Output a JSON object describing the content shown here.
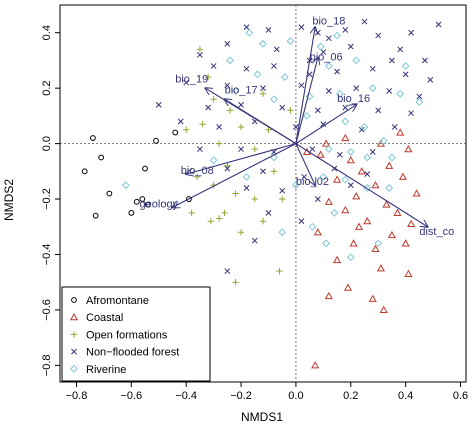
{
  "chart_data": {
    "type": "scatter",
    "title": "",
    "xlabel": "NMDS1",
    "ylabel": "NMDS2",
    "xlim": [
      -0.86,
      0.62
    ],
    "ylim": [
      -0.86,
      0.5
    ],
    "x_ticks": [
      -0.8,
      -0.6,
      -0.4,
      -0.2,
      0.0,
      0.2,
      0.4,
      0.6
    ],
    "y_ticks": [
      -0.8,
      -0.6,
      -0.4,
      -0.2,
      0.0,
      0.2,
      0.4
    ],
    "x_tick_labels": [
      "−0.8",
      "−0.6",
      "−0.4",
      "−0.2",
      "0.0",
      "0.2",
      "0.4",
      "0.6"
    ],
    "y_tick_labels": [
      "−0.8",
      "−0.6",
      "−0.4",
      "−0.2",
      "0.0",
      "0.2",
      "0.4"
    ],
    "grid": false,
    "legend_position": "bottom-left",
    "series": [
      {
        "name": "Afromontane",
        "marker": "circle",
        "color": "#000000",
        "points": [
          [
            -0.74,
            0.02
          ],
          [
            -0.71,
            -0.05
          ],
          [
            -0.77,
            -0.1
          ],
          [
            -0.68,
            -0.18
          ],
          [
            -0.73,
            -0.26
          ],
          [
            -0.58,
            -0.21
          ],
          [
            -0.6,
            -0.25
          ],
          [
            -0.55,
            -0.09
          ],
          [
            -0.51,
            0.01
          ],
          [
            -0.44,
            0.04
          ],
          [
            -0.54,
            -0.22
          ],
          [
            -0.39,
            -0.2
          ],
          [
            -0.56,
            -0.2
          ]
        ]
      },
      {
        "name": "Coastal",
        "marker": "triangle",
        "color": "#c0392b",
        "points": [
          [
            0.38,
            0.04
          ],
          [
            0.31,
            0.0
          ],
          [
            0.41,
            -0.02
          ],
          [
            0.18,
            0.02
          ],
          [
            0.11,
            0.0
          ],
          [
            0.04,
            -0.03
          ],
          [
            0.09,
            -0.04
          ],
          [
            0.2,
            -0.06
          ],
          [
            0.34,
            -0.08
          ],
          [
            0.24,
            -0.1
          ],
          [
            0.39,
            -0.12
          ],
          [
            0.15,
            -0.13
          ],
          [
            0.29,
            -0.15
          ],
          [
            0.44,
            -0.18
          ],
          [
            0.22,
            -0.19
          ],
          [
            0.12,
            -0.21
          ],
          [
            0.33,
            -0.22
          ],
          [
            0.18,
            -0.24
          ],
          [
            0.26,
            -0.28
          ],
          [
            0.42,
            -0.29
          ],
          [
            0.35,
            -0.33
          ],
          [
            0.08,
            -0.32
          ],
          [
            0.21,
            -0.36
          ],
          [
            0.29,
            -0.38
          ],
          [
            0.4,
            -0.36
          ],
          [
            0.15,
            -0.42
          ],
          [
            0.31,
            -0.45
          ],
          [
            0.41,
            -0.47
          ],
          [
            0.19,
            -0.52
          ],
          [
            0.28,
            -0.56
          ],
          [
            0.32,
            -0.6
          ],
          [
            0.12,
            -0.55
          ],
          [
            0.07,
            -0.8
          ],
          [
            0.23,
            -0.3
          ],
          [
            0.37,
            -0.25
          ]
        ]
      },
      {
        "name": "Open formations",
        "marker": "plus",
        "color": "#8aaa30",
        "points": [
          [
            -0.35,
            0.34
          ],
          [
            -0.32,
            0.24
          ],
          [
            -0.3,
            0.16
          ],
          [
            -0.24,
            0.12
          ],
          [
            -0.4,
            0.05
          ],
          [
            -0.34,
            0.07
          ],
          [
            -0.28,
            0.0
          ],
          [
            -0.2,
            0.06
          ],
          [
            -0.15,
            -0.02
          ],
          [
            -0.25,
            -0.08
          ],
          [
            -0.36,
            -0.12
          ],
          [
            -0.3,
            -0.15
          ],
          [
            -0.22,
            -0.18
          ],
          [
            -0.15,
            -0.2
          ],
          [
            -0.26,
            -0.25
          ],
          [
            -0.31,
            -0.28
          ],
          [
            -0.38,
            -0.25
          ],
          [
            -0.2,
            -0.32
          ],
          [
            -0.12,
            -0.28
          ],
          [
            -0.05,
            -0.2
          ],
          [
            -0.08,
            -0.1
          ],
          [
            -0.02,
            0.12
          ],
          [
            -0.12,
            0.18
          ],
          [
            -0.06,
            -0.46
          ],
          [
            -0.22,
            -0.5
          ],
          [
            -0.28,
            -0.27
          ],
          [
            -0.1,
            0.05
          ]
        ]
      },
      {
        "name": "Non−flooded forest",
        "marker": "x",
        "color": "#35357a",
        "points": [
          [
            -0.18,
            0.42
          ],
          [
            -0.1,
            0.41
          ],
          [
            0.02,
            0.42
          ],
          [
            0.08,
            0.4
          ],
          [
            0.18,
            0.41
          ],
          [
            0.25,
            0.44
          ],
          [
            0.3,
            0.39
          ],
          [
            0.42,
            0.4
          ],
          [
            0.52,
            0.43
          ],
          [
            -0.25,
            0.36
          ],
          [
            -0.07,
            0.34
          ],
          [
            0.1,
            0.33
          ],
          [
            0.2,
            0.35
          ],
          [
            0.38,
            0.34
          ],
          [
            0.47,
            0.3
          ],
          [
            -0.3,
            0.28
          ],
          [
            -0.18,
            0.27
          ],
          [
            -0.08,
            0.28
          ],
          [
            0.05,
            0.3
          ],
          [
            0.15,
            0.26
          ],
          [
            0.28,
            0.27
          ],
          [
            0.4,
            0.25
          ],
          [
            0.49,
            0.23
          ],
          [
            -0.4,
            0.22
          ],
          [
            -0.25,
            0.21
          ],
          [
            -0.12,
            0.2
          ],
          [
            0.02,
            0.21
          ],
          [
            0.12,
            0.19
          ],
          [
            0.22,
            0.2
          ],
          [
            0.34,
            0.19
          ],
          [
            0.45,
            0.17
          ],
          [
            -0.5,
            0.14
          ],
          [
            -0.32,
            0.13
          ],
          [
            -0.2,
            0.14
          ],
          [
            -0.05,
            0.13
          ],
          [
            0.08,
            0.12
          ],
          [
            0.18,
            0.13
          ],
          [
            0.3,
            0.12
          ],
          [
            0.42,
            0.11
          ],
          [
            -0.42,
            0.08
          ],
          [
            -0.28,
            0.06
          ],
          [
            -0.15,
            0.08
          ],
          [
            0.0,
            0.06
          ],
          [
            0.1,
            0.07
          ],
          [
            0.24,
            0.05
          ],
          [
            0.36,
            0.06
          ],
          [
            -0.35,
            -0.02
          ],
          [
            -0.2,
            -0.02
          ],
          [
            -0.08,
            -0.03
          ],
          [
            0.06,
            -0.02
          ],
          [
            0.16,
            -0.04
          ],
          [
            0.28,
            -0.03
          ],
          [
            -0.25,
            -0.09
          ],
          [
            -0.12,
            -0.1
          ],
          [
            0.03,
            -0.12
          ],
          [
            0.14,
            -0.09
          ],
          [
            0.26,
            -0.11
          ],
          [
            -0.18,
            -0.16
          ],
          [
            -0.05,
            -0.17
          ],
          [
            0.08,
            -0.2
          ],
          [
            0.2,
            -0.15
          ],
          [
            -0.1,
            -0.25
          ],
          [
            0.02,
            -0.28
          ],
          [
            -0.25,
            -0.46
          ],
          [
            -0.15,
            -0.35
          ],
          [
            0.05,
            0.25
          ],
          [
            -0.35,
            0.32
          ],
          [
            0.35,
            0.3
          ],
          [
            0.12,
            0.38
          ]
        ]
      },
      {
        "name": "Riverine",
        "marker": "diamond",
        "color": "#7ec8d8",
        "points": [
          [
            -0.17,
            0.4
          ],
          [
            -0.12,
            0.36
          ],
          [
            -0.02,
            0.37
          ],
          [
            0.09,
            0.35
          ],
          [
            0.15,
            0.39
          ],
          [
            -0.24,
            0.3
          ],
          [
            -0.14,
            0.25
          ],
          [
            -0.04,
            0.24
          ],
          [
            0.12,
            0.28
          ],
          [
            0.22,
            0.3
          ],
          [
            0.4,
            0.28
          ],
          [
            -0.22,
            0.19
          ],
          [
            -0.08,
            0.16
          ],
          [
            0.05,
            0.17
          ],
          [
            0.16,
            0.18
          ],
          [
            0.28,
            0.2
          ],
          [
            0.38,
            0.18
          ],
          [
            0.45,
            0.15
          ],
          [
            0.04,
            0.1
          ],
          [
            0.18,
            0.08
          ],
          [
            0.25,
            0.06
          ],
          [
            0.32,
            0.01
          ],
          [
            0.12,
            -0.02
          ],
          [
            0.2,
            -0.03
          ],
          [
            0.26,
            -0.05
          ],
          [
            0.35,
            -0.05
          ],
          [
            0.1,
            -0.12
          ],
          [
            0.18,
            -0.13
          ],
          [
            0.26,
            -0.16
          ],
          [
            0.34,
            -0.16
          ],
          [
            0.14,
            -0.25
          ],
          [
            0.06,
            -0.3
          ],
          [
            0.11,
            -0.36
          ],
          [
            0.2,
            -0.41
          ],
          [
            0.3,
            -0.36
          ],
          [
            -0.3,
            -0.06
          ],
          [
            -0.18,
            -0.12
          ],
          [
            -0.08,
            -0.05
          ],
          [
            -0.05,
            -0.32
          ],
          [
            -0.62,
            -0.15
          ],
          [
            0.0,
            -0.15
          ]
        ]
      }
    ],
    "arrows": [
      {
        "label": "bio_18",
        "x": 0.07,
        "y": 0.42,
        "lx": 0.06,
        "ly": 0.43
      },
      {
        "label": "bio_06",
        "x": 0.08,
        "y": 0.31,
        "lx": 0.05,
        "ly": 0.3
      },
      {
        "label": "bio_19",
        "x": -0.33,
        "y": 0.2,
        "lx": -0.44,
        "ly": 0.22
      },
      {
        "label": "bio_17",
        "x": -0.26,
        "y": 0.16,
        "lx": -0.26,
        "ly": 0.18
      },
      {
        "label": "bio_16",
        "x": 0.22,
        "y": 0.14,
        "lx": 0.15,
        "ly": 0.15
      },
      {
        "label": "bio_08",
        "x": -0.4,
        "y": -0.11,
        "lx": -0.42,
        "ly": -0.11
      },
      {
        "label": "geology",
        "x": -0.45,
        "y": -0.23,
        "lx": -0.57,
        "ly": -0.23
      },
      {
        "label": "bio_02",
        "x": 0.07,
        "y": -0.15,
        "lx": 0.0,
        "ly": -0.15
      },
      {
        "label": "dist_co",
        "x": 0.48,
        "y": -0.3,
        "lx": 0.45,
        "ly": -0.33
      }
    ]
  }
}
